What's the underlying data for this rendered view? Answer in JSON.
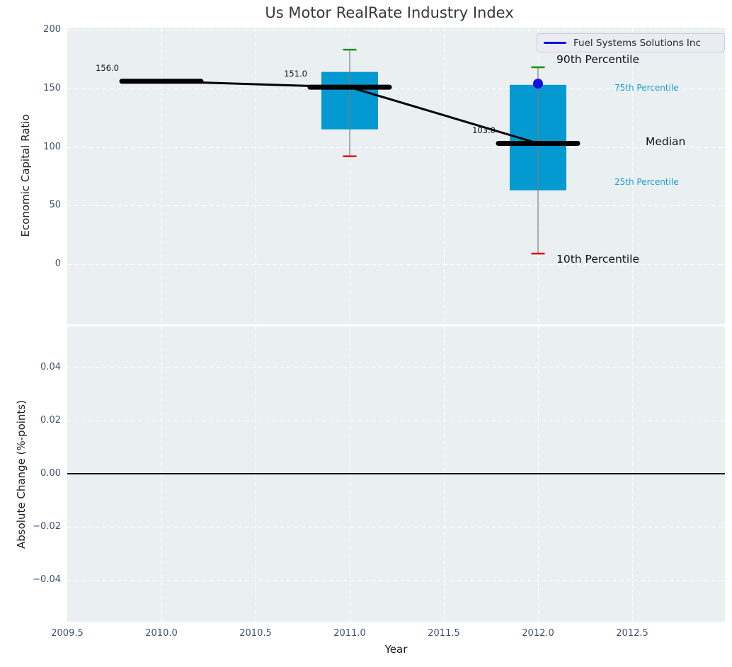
{
  "title": "Us Motor RealRate Industry Index",
  "legend": {
    "series_label": "Fuel Systems Solutions Inc"
  },
  "percentile_labels": {
    "p90": "90th Percentile",
    "p75": "75th Percentile",
    "median": "Median",
    "p25": "25th Percentile",
    "p10": "10th Percentile"
  },
  "xlabel": "Year",
  "xtick_labels": [
    "2009.5",
    "2010.0",
    "2010.5",
    "2011.0",
    "2011.5",
    "2012.0",
    "2012.5"
  ],
  "top_ytick_labels": [
    "200",
    "150",
    "100",
    "50",
    "0"
  ],
  "bottom_ytick_labels": [
    "0.04",
    "0.02",
    "0.00",
    "−0.02",
    "−0.04"
  ],
  "colors": {
    "box_fill": "#0499d1",
    "series_blue": "#1212e0",
    "whisker": "#7d7d7d",
    "cap_high": "#149414",
    "cap_low": "#e60000",
    "median_line": "#000000",
    "plot_bg": "#eaeff1",
    "grid": "#ffffff",
    "tick_label": "#40516d",
    "percentile_label_cyan": "#189fd0"
  },
  "chart_data": [
    {
      "type": "boxplot",
      "subplot": "top",
      "ylabel": "Economic Capital Ratio",
      "yticks": [
        200,
        150,
        100,
        50,
        0
      ],
      "ylim": [
        -51,
        202
      ],
      "xlim": [
        2009.5,
        2013.0
      ],
      "xticks": [
        2009.5,
        2010.0,
        2010.5,
        2011.0,
        2011.5,
        2012.0,
        2012.5
      ],
      "grid": "white dashed",
      "legend_position": "upper right",
      "boxes": [
        {
          "year": 2010,
          "p10": 156,
          "q1": 156,
          "median": 156,
          "q3": 156,
          "p90": 156,
          "label": "156.0"
        },
        {
          "year": 2011,
          "p10": 92,
          "q1": 115,
          "median": 151,
          "q3": 164,
          "p90": 183,
          "label": "151.0"
        },
        {
          "year": 2012,
          "p10": 9,
          "q1": 63,
          "median": 103,
          "q3": 153,
          "p90": 168,
          "label": "103.0"
        }
      ],
      "median_line": {
        "x": [
          2010,
          2011,
          2012
        ],
        "y": [
          156,
          151,
          103
        ]
      },
      "company_point": {
        "name": "Fuel Systems Solutions Inc",
        "x": 2012,
        "y": 154
      },
      "annotations": [
        "90th Percentile",
        "75th Percentile",
        "Median",
        "25th Percentile",
        "10th Percentile"
      ]
    },
    {
      "type": "line",
      "subplot": "bottom",
      "ylabel": "Absolute Change (%-points)",
      "xlabel": "Year",
      "yticks": [
        0.04,
        0.02,
        0,
        -0.02,
        -0.04
      ],
      "ylim": [
        -0.0555,
        0.0555
      ],
      "series": [],
      "zero_line": 0
    }
  ]
}
